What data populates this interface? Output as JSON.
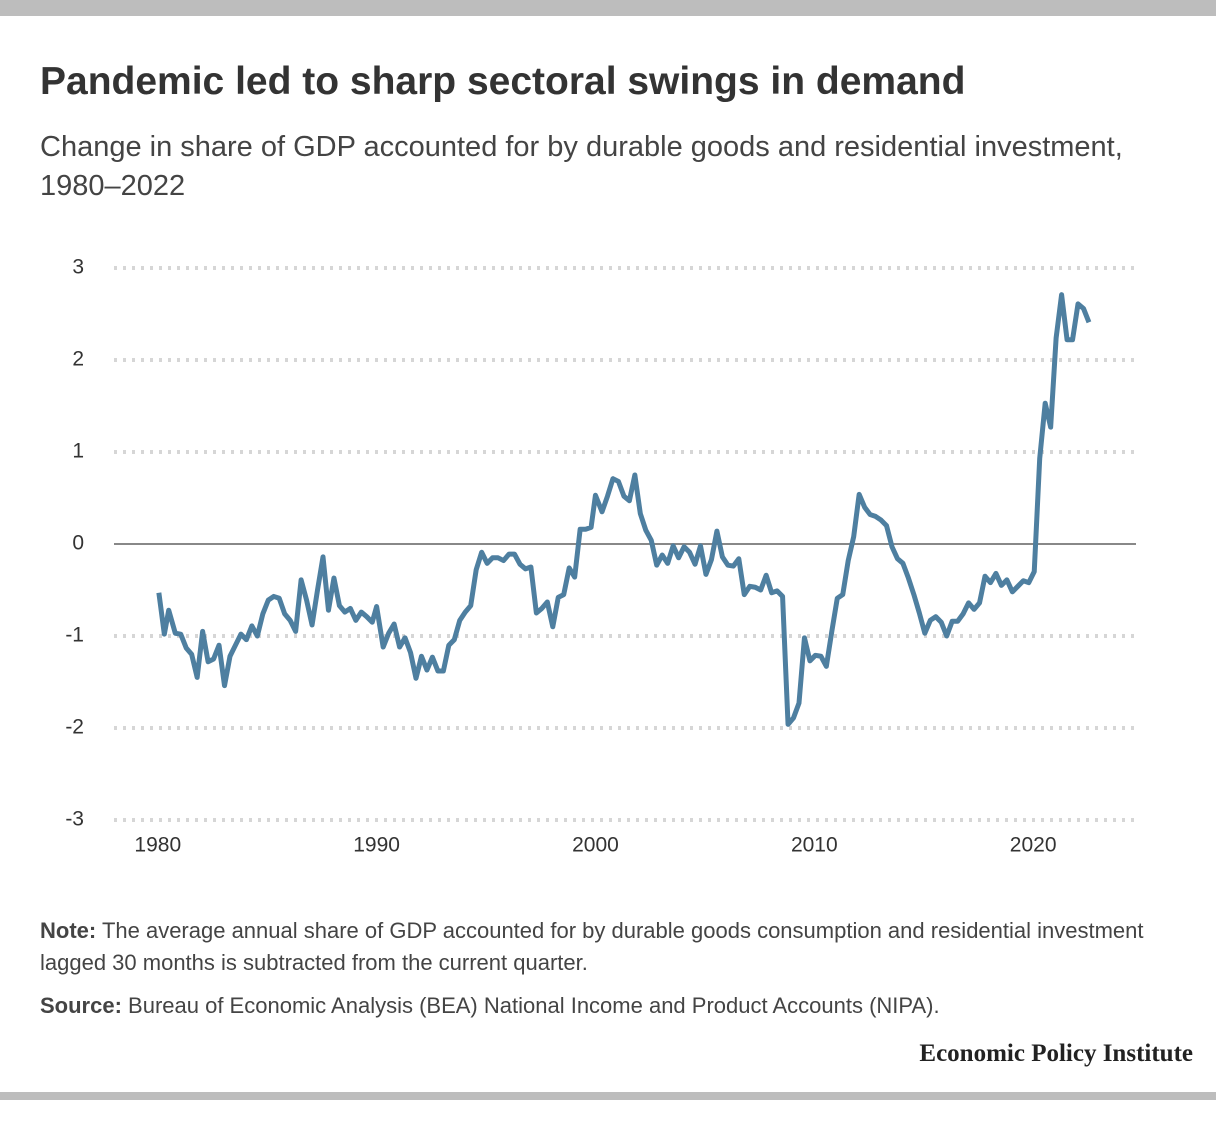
{
  "header": {
    "title": "Pandemic led to sharp sectoral swings in demand",
    "subtitle": "Change in share of GDP accounted for by durable goods and residential investment, 1980–2022"
  },
  "chart_data": {
    "type": "line",
    "x": [
      1980.05,
      1980.3,
      1980.5,
      1980.8,
      1981.05,
      1981.3,
      1981.55,
      1981.8,
      1982.05,
      1982.3,
      1982.55,
      1982.8,
      1983.05,
      1983.3,
      1983.55,
      1983.8,
      1984.05,
      1984.3,
      1984.55,
      1984.8,
      1985.05,
      1985.3,
      1985.55,
      1985.8,
      1986.05,
      1986.3,
      1986.55,
      1986.8,
      1987.05,
      1987.3,
      1987.55,
      1987.8,
      1988.05,
      1988.3,
      1988.55,
      1988.8,
      1989.05,
      1989.3,
      1989.55,
      1989.8,
      1990.0,
      1990.3,
      1990.55,
      1990.8,
      1991.05,
      1991.3,
      1991.55,
      1991.8,
      1992.05,
      1992.3,
      1992.55,
      1992.8,
      1993.05,
      1993.3,
      1993.55,
      1993.8,
      1994.05,
      1994.3,
      1994.55,
      1994.8,
      1995.05,
      1995.3,
      1995.55,
      1995.8,
      1996.05,
      1996.3,
      1996.55,
      1996.8,
      1997.05,
      1997.3,
      1997.55,
      1997.8,
      1998.05,
      1998.3,
      1998.55,
      1998.8,
      1999.05,
      1999.3,
      1999.55,
      1999.8,
      2000.0,
      2000.3,
      2000.55,
      2000.8,
      2001.05,
      2001.3,
      2001.55,
      2001.8,
      2002.05,
      2002.3,
      2002.55,
      2002.8,
      2003.05,
      2003.3,
      2003.55,
      2003.8,
      2004.05,
      2004.3,
      2004.55,
      2004.8,
      2005.05,
      2005.3,
      2005.55,
      2005.8,
      2006.05,
      2006.3,
      2006.55,
      2006.8,
      2007.05,
      2007.3,
      2007.55,
      2007.8,
      2008.05,
      2008.3,
      2008.55,
      2008.8,
      2009.05,
      2009.3,
      2009.55,
      2009.8,
      2010.05,
      2010.3,
      2010.55,
      2010.8,
      2011.05,
      2011.3,
      2011.55,
      2011.8,
      2012.05,
      2012.3,
      2012.55,
      2012.8,
      2013.05,
      2013.3,
      2013.55,
      2013.8,
      2014.05,
      2014.3,
      2014.55,
      2014.8,
      2015.05,
      2015.3,
      2015.55,
      2015.8,
      2016.05,
      2016.3,
      2016.55,
      2016.8,
      2017.05,
      2017.3,
      2017.55,
      2017.8,
      2018.05,
      2018.3,
      2018.55,
      2018.8,
      2019.05,
      2019.3,
      2019.55,
      2019.8,
      2020.05,
      2020.3,
      2020.55,
      2020.8,
      2021.05,
      2021.3,
      2021.55,
      2021.8,
      2022.05,
      2022.3,
      2022.55
    ],
    "series": [
      {
        "color": "#4e7fa0",
        "values": [
          -0.53,
          -0.98,
          -0.72,
          -0.97,
          -0.98,
          -1.13,
          -1.2,
          -1.45,
          -0.95,
          -1.28,
          -1.25,
          -1.1,
          -1.54,
          -1.22,
          -1.1,
          -0.98,
          -1.04,
          -0.89,
          -1.0,
          -0.76,
          -0.61,
          -0.57,
          -0.59,
          -0.76,
          -0.83,
          -0.95,
          -0.39,
          -0.61,
          -0.88,
          -0.5,
          -0.14,
          -0.72,
          -0.37,
          -0.67,
          -0.74,
          -0.7,
          -0.83,
          -0.74,
          -0.79,
          -0.85,
          -0.68,
          -1.12,
          -0.97,
          -0.87,
          -1.12,
          -1.02,
          -1.18,
          -1.46,
          -1.22,
          -1.37,
          -1.23,
          -1.38,
          -1.38,
          -1.1,
          -1.04,
          -0.83,
          -0.74,
          -0.67,
          -0.28,
          -0.09,
          -0.21,
          -0.15,
          -0.15,
          -0.18,
          -0.11,
          -0.11,
          -0.22,
          -0.27,
          -0.25,
          -0.75,
          -0.7,
          -0.63,
          -0.9,
          -0.58,
          -0.55,
          -0.26,
          -0.36,
          0.16,
          0.16,
          0.18,
          0.53,
          0.35,
          0.52,
          0.71,
          0.68,
          0.52,
          0.47,
          0.75,
          0.33,
          0.15,
          0.04,
          -0.23,
          -0.12,
          -0.21,
          -0.02,
          -0.15,
          -0.03,
          -0.09,
          -0.22,
          -0.02,
          -0.33,
          -0.17,
          0.14,
          -0.14,
          -0.23,
          -0.24,
          -0.16,
          -0.55,
          -0.46,
          -0.47,
          -0.5,
          -0.34,
          -0.53,
          -0.51,
          -0.57,
          -1.96,
          -1.89,
          -1.73,
          -1.02,
          -1.27,
          -1.21,
          -1.22,
          -1.33,
          -0.95,
          -0.59,
          -0.55,
          -0.18,
          0.08,
          0.54,
          0.4,
          0.32,
          0.3,
          0.26,
          0.2,
          -0.03,
          -0.16,
          -0.21,
          -0.37,
          -0.55,
          -0.75,
          -0.97,
          -0.83,
          -0.79,
          -0.85,
          -1.0,
          -0.84,
          -0.84,
          -0.76,
          -0.64,
          -0.71,
          -0.64,
          -0.35,
          -0.42,
          -0.32,
          -0.45,
          -0.39,
          -0.52,
          -0.46,
          -0.4,
          -0.42,
          -0.3,
          0.93,
          1.53,
          1.27,
          2.24,
          2.71,
          2.22,
          2.22,
          2.61,
          2.56,
          2.41
        ]
      }
    ],
    "xlim": [
      1978,
      2024.7
    ],
    "xticks": [
      1980,
      1990,
      2000,
      2010,
      2020
    ],
    "ylim": [
      -3,
      3
    ],
    "yticks": [
      -3,
      -2,
      -1,
      0,
      1,
      2,
      3
    ],
    "grid": true
  },
  "note": {
    "label": "Note:",
    "text": "The average annual share of GDP accounted for by durable goods consumption and residential investment lagged 30 months is subtracted from the current quarter."
  },
  "source": {
    "label": "Source:",
    "text": "Bureau of Economic Analysis (BEA) National Income and Product Accounts (NIPA)."
  },
  "brand": "Economic Policy Institute"
}
